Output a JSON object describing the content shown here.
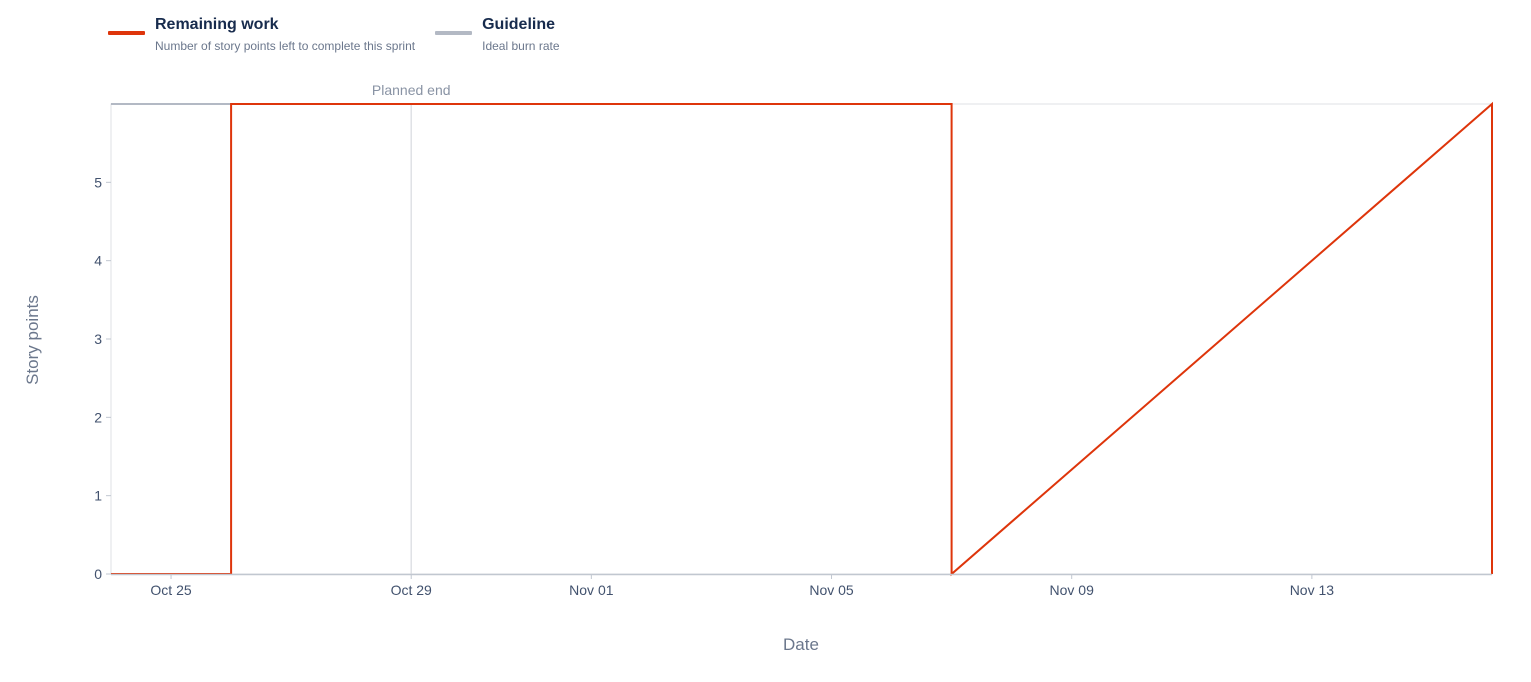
{
  "legend": {
    "items": [
      {
        "name": "Remaining work",
        "description": "Number of story points left to complete this sprint",
        "color": "#de350b"
      },
      {
        "name": "Guideline",
        "description": "Ideal burn rate",
        "color": "#b3b9c4"
      }
    ]
  },
  "chart_data": {
    "type": "line",
    "xlabel": "Date",
    "ylabel": "Story points",
    "x_ticks": [
      "Oct 25",
      "Oct 29",
      "Nov 01",
      "Nov 05",
      "Nov 09",
      "Nov 13"
    ],
    "y_ticks": [
      "0",
      "1",
      "2",
      "3",
      "4",
      "5"
    ],
    "xlim": [
      "Oct 24",
      "Nov 16"
    ],
    "ylim": [
      0,
      6
    ],
    "annotations": [
      {
        "label": "Planned end",
        "x": "Oct 29"
      }
    ],
    "grid": false,
    "series": [
      {
        "name": "Remaining work",
        "color": "#de350b",
        "x": [
          "Oct 24",
          "Oct 26",
          "Oct 26",
          "Nov 07",
          "Nov 07",
          "Nov 16",
          "Nov 16"
        ],
        "values": [
          0,
          0,
          6,
          6,
          0,
          6,
          0
        ]
      },
      {
        "name": "Guideline",
        "color": "#b3b9c4",
        "x": [
          "Oct 24",
          "Oct 26"
        ],
        "values": [
          6,
          6
        ]
      }
    ]
  }
}
